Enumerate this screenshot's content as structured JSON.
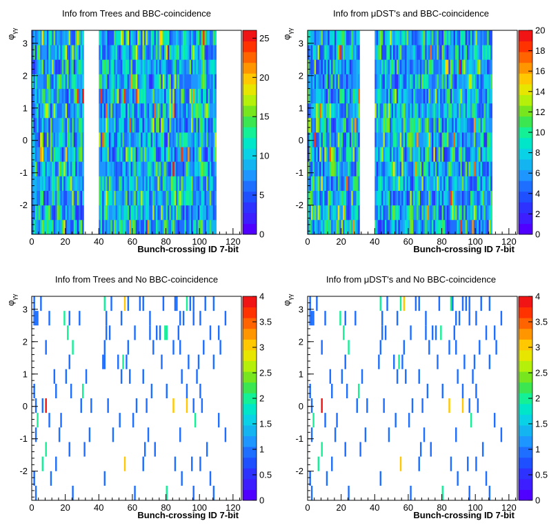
{
  "colorscale": [
    "#5000ff",
    "#3c1eff",
    "#2d32ff",
    "#1e50ff",
    "#1e6eff",
    "#1e96ff",
    "#14b4f0",
    "#0ad2e6",
    "#00e6c8",
    "#14f096",
    "#3ce650",
    "#78e61e",
    "#b4f00a",
    "#e6e600",
    "#ffc800",
    "#ff9600",
    "#ff6400",
    "#ff3200",
    "#f01414"
  ],
  "chart_data": [
    {
      "type": "heatmap",
      "title": "Info from Trees and BBC-coincidence",
      "xlabel": "Bunch-crossing ID 7-bit",
      "ylabel_base": "φ",
      "ylabel_sub": "γγ",
      "xlim": [
        0,
        125
      ],
      "ylim": [
        -2.9,
        3.4
      ],
      "xticks": [
        "0",
        "20",
        "40",
        "60",
        "80",
        "100",
        "120"
      ],
      "yticks": [
        "-2",
        "-1",
        "0",
        "1",
        "2",
        "3"
      ],
      "zlim": [
        0,
        26
      ],
      "zticks": [
        "0",
        "5",
        "10",
        "15",
        "20",
        "25"
      ],
      "zstep": 5,
      "mode": "dense",
      "filled_bins": [
        [
          0,
          31
        ],
        [
          40,
          110
        ]
      ],
      "seed": 11
    },
    {
      "type": "heatmap",
      "title": "Info from μDST's and BBC-coincidence",
      "xlabel": "Bunch-crossing ID 7-bit",
      "ylabel_base": "φ",
      "ylabel_sub": "γγ",
      "xlim": [
        0,
        125
      ],
      "ylim": [
        -2.9,
        3.4
      ],
      "xticks": [
        "0",
        "20",
        "40",
        "60",
        "80",
        "100",
        "120"
      ],
      "yticks": [
        "-2",
        "-1",
        "0",
        "1",
        "2",
        "3"
      ],
      "zlim": [
        0,
        20
      ],
      "zticks": [
        "0",
        "2",
        "4",
        "6",
        "8",
        "10",
        "12",
        "14",
        "16",
        "18",
        "20"
      ],
      "zstep": 2,
      "mode": "dense",
      "filled_bins": [
        [
          0,
          31
        ],
        [
          40,
          110
        ]
      ],
      "seed": 29
    },
    {
      "type": "heatmap",
      "title": "Info from Trees and No BBC-coincidence",
      "xlabel": "Bunch-crossing ID 7-bit",
      "ylabel_base": "φ",
      "ylabel_sub": "γγ",
      "xlim": [
        0,
        125
      ],
      "ylim": [
        -2.9,
        3.4
      ],
      "xticks": [
        "0",
        "20",
        "40",
        "60",
        "80",
        "100",
        "120"
      ],
      "yticks": [
        "-2",
        "-1",
        "0",
        "1",
        "2",
        "3"
      ],
      "zlim": [
        0,
        4
      ],
      "zticks": [
        "0",
        "0.5",
        "1",
        "1.5",
        "2",
        "2.5",
        "3",
        "3.5",
        "4"
      ],
      "zstep": 0.5,
      "mode": "sparse",
      "cells": [
        [
          5,
          13,
          1
        ],
        [
          1,
          13,
          1
        ],
        [
          1,
          12,
          1
        ],
        [
          3,
          12,
          1
        ],
        [
          43,
          13,
          2
        ],
        [
          47,
          13,
          1
        ],
        [
          55,
          13,
          3
        ],
        [
          57,
          13,
          1
        ],
        [
          64,
          13,
          1
        ],
        [
          66,
          13,
          1
        ],
        [
          78,
          13,
          1
        ],
        [
          85,
          13,
          1
        ],
        [
          86,
          13,
          1
        ],
        [
          92,
          13,
          2
        ],
        [
          94,
          13,
          1
        ],
        [
          96,
          13,
          1
        ],
        [
          103,
          13,
          1
        ],
        [
          108,
          13,
          1
        ],
        [
          2,
          12,
          1
        ],
        [
          10,
          12,
          1
        ],
        [
          19,
          12,
          2
        ],
        [
          22,
          12,
          1
        ],
        [
          28,
          12,
          1
        ],
        [
          44,
          12,
          1
        ],
        [
          53,
          12,
          1
        ],
        [
          70,
          12,
          1
        ],
        [
          88,
          12,
          1
        ],
        [
          90,
          12,
          1
        ],
        [
          96,
          12,
          1
        ],
        [
          100,
          12,
          1
        ],
        [
          115,
          12,
          1
        ],
        [
          21,
          11,
          2
        ],
        [
          44,
          11,
          1
        ],
        [
          46,
          11,
          1
        ],
        [
          61,
          11,
          1
        ],
        [
          70,
          11,
          1
        ],
        [
          74,
          11,
          1
        ],
        [
          76,
          11,
          1
        ],
        [
          79,
          11,
          2
        ],
        [
          80,
          11,
          2
        ],
        [
          87,
          11,
          1
        ],
        [
          106,
          11,
          1
        ],
        [
          111,
          11,
          1
        ],
        [
          8,
          10,
          1
        ],
        [
          24,
          10,
          2
        ],
        [
          43,
          10,
          1
        ],
        [
          57,
          10,
          1
        ],
        [
          72,
          10,
          1
        ],
        [
          84,
          10,
          1
        ],
        [
          88,
          10,
          1
        ],
        [
          102,
          10,
          1
        ],
        [
          112,
          10,
          1
        ],
        [
          22,
          9,
          1
        ],
        [
          42,
          9,
          1
        ],
        [
          43,
          9,
          1
        ],
        [
          51,
          9,
          1
        ],
        [
          54,
          9,
          2
        ],
        [
          56,
          9,
          1
        ],
        [
          77,
          9,
          1
        ],
        [
          93,
          9,
          1
        ],
        [
          99,
          9,
          1
        ],
        [
          108,
          9,
          1
        ],
        [
          13,
          8,
          1
        ],
        [
          20,
          8,
          1
        ],
        [
          32,
          8,
          1
        ],
        [
          53,
          8,
          1
        ],
        [
          58,
          8,
          1
        ],
        [
          66,
          8,
          1
        ],
        [
          89,
          8,
          1
        ],
        [
          98,
          8,
          1
        ],
        [
          1,
          7,
          1
        ],
        [
          14,
          7,
          1
        ],
        [
          23,
          7,
          1
        ],
        [
          30,
          7,
          2
        ],
        [
          71,
          7,
          1
        ],
        [
          80,
          7,
          1
        ],
        [
          92,
          7,
          1
        ],
        [
          100,
          7,
          1
        ],
        [
          2,
          6,
          1
        ],
        [
          8,
          6,
          4
        ],
        [
          6,
          6,
          1
        ],
        [
          29,
          6,
          1
        ],
        [
          35,
          6,
          1
        ],
        [
          45,
          6,
          1
        ],
        [
          62,
          6,
          1
        ],
        [
          68,
          6,
          1
        ],
        [
          84,
          6,
          3
        ],
        [
          92,
          6,
          3
        ],
        [
          96,
          6,
          1
        ],
        [
          101,
          6,
          1
        ],
        [
          3,
          5,
          2
        ],
        [
          10,
          5,
          1
        ],
        [
          17,
          5,
          1
        ],
        [
          52,
          5,
          1
        ],
        [
          60,
          5,
          1
        ],
        [
          97,
          5,
          2
        ],
        [
          111,
          5,
          1
        ],
        [
          2,
          4,
          1
        ],
        [
          16,
          4,
          1
        ],
        [
          34,
          4,
          1
        ],
        [
          48,
          4,
          1
        ],
        [
          69,
          4,
          1
        ],
        [
          88,
          4,
          1
        ],
        [
          115,
          4,
          1
        ],
        [
          8,
          3,
          2
        ],
        [
          22,
          3,
          1
        ],
        [
          31,
          3,
          1
        ],
        [
          67,
          3,
          1
        ],
        [
          73,
          3,
          1
        ],
        [
          104,
          3,
          1
        ],
        [
          6,
          2,
          2
        ],
        [
          14,
          2,
          1
        ],
        [
          55,
          2,
          3
        ],
        [
          66,
          2,
          1
        ],
        [
          85,
          2,
          1
        ],
        [
          95,
          2,
          1
        ],
        [
          100,
          2,
          1
        ],
        [
          1,
          1,
          1
        ],
        [
          11,
          1,
          1
        ],
        [
          43,
          1,
          1
        ],
        [
          89,
          1,
          1
        ],
        [
          106,
          1,
          1
        ],
        [
          2,
          0,
          1
        ],
        [
          24,
          0,
          1
        ],
        [
          61,
          0,
          1
        ],
        [
          80,
          0,
          2
        ],
        [
          96,
          0,
          1
        ],
        [
          108,
          0,
          1
        ]
      ]
    },
    {
      "type": "heatmap",
      "title": "Info from μDST's and No BBC-coincidence",
      "xlabel": "Bunch-crossing ID 7-bit",
      "ylabel_base": "φ",
      "ylabel_sub": "γγ",
      "xlim": [
        0,
        125
      ],
      "ylim": [
        -2.9,
        3.4
      ],
      "xticks": [
        "0",
        "20",
        "40",
        "60",
        "80",
        "100",
        "120"
      ],
      "yticks": [
        "-2",
        "-1",
        "0",
        "1",
        "2",
        "3"
      ],
      "zlim": [
        0,
        4
      ],
      "zticks": [
        "0",
        "0.5",
        "1",
        "1.5",
        "2",
        "2.5",
        "3",
        "3.5",
        "4"
      ],
      "zstep": 0.5,
      "mode": "sparse",
      "cells": [
        [
          5,
          13,
          1
        ],
        [
          1,
          13,
          1
        ],
        [
          1,
          12,
          1
        ],
        [
          3,
          12,
          1
        ],
        [
          43,
          13,
          2
        ],
        [
          47,
          13,
          1
        ],
        [
          55,
          13,
          2
        ],
        [
          57,
          13,
          3
        ],
        [
          64,
          13,
          1
        ],
        [
          66,
          13,
          1
        ],
        [
          78,
          13,
          1
        ],
        [
          85,
          13,
          2
        ],
        [
          86,
          13,
          1
        ],
        [
          92,
          13,
          1
        ],
        [
          94,
          13,
          1
        ],
        [
          96,
          13,
          1
        ],
        [
          103,
          13,
          1
        ],
        [
          108,
          13,
          1
        ],
        [
          2,
          12,
          1
        ],
        [
          10,
          12,
          1
        ],
        [
          19,
          12,
          2
        ],
        [
          22,
          12,
          1
        ],
        [
          28,
          12,
          1
        ],
        [
          44,
          12,
          1
        ],
        [
          53,
          12,
          1
        ],
        [
          70,
          12,
          1
        ],
        [
          88,
          12,
          1
        ],
        [
          90,
          12,
          1
        ],
        [
          96,
          12,
          1
        ],
        [
          100,
          12,
          1
        ],
        [
          115,
          12,
          1
        ],
        [
          21,
          11,
          2
        ],
        [
          44,
          11,
          1
        ],
        [
          46,
          11,
          1
        ],
        [
          61,
          11,
          1
        ],
        [
          70,
          11,
          1
        ],
        [
          74,
          11,
          1
        ],
        [
          76,
          11,
          1
        ],
        [
          79,
          11,
          2
        ],
        [
          87,
          11,
          1
        ],
        [
          106,
          11,
          1
        ],
        [
          111,
          11,
          1
        ],
        [
          8,
          10,
          1
        ],
        [
          24,
          10,
          2
        ],
        [
          43,
          10,
          1
        ],
        [
          57,
          10,
          1
        ],
        [
          72,
          10,
          1
        ],
        [
          84,
          10,
          1
        ],
        [
          88,
          10,
          1
        ],
        [
          102,
          10,
          1
        ],
        [
          112,
          10,
          1
        ],
        [
          22,
          9,
          1
        ],
        [
          42,
          9,
          1
        ],
        [
          51,
          9,
          1
        ],
        [
          54,
          9,
          2
        ],
        [
          56,
          9,
          1
        ],
        [
          77,
          9,
          1
        ],
        [
          93,
          9,
          1
        ],
        [
          99,
          9,
          1
        ],
        [
          108,
          9,
          1
        ],
        [
          13,
          8,
          1
        ],
        [
          20,
          8,
          1
        ],
        [
          32,
          8,
          1
        ],
        [
          53,
          8,
          1
        ],
        [
          58,
          8,
          1
        ],
        [
          66,
          8,
          1
        ],
        [
          89,
          8,
          1
        ],
        [
          98,
          8,
          1
        ],
        [
          1,
          7,
          1
        ],
        [
          14,
          7,
          1
        ],
        [
          23,
          7,
          1
        ],
        [
          30,
          7,
          2
        ],
        [
          71,
          7,
          1
        ],
        [
          80,
          7,
          1
        ],
        [
          92,
          7,
          1
        ],
        [
          100,
          7,
          1
        ],
        [
          2,
          6,
          1
        ],
        [
          8,
          6,
          4
        ],
        [
          29,
          6,
          1
        ],
        [
          35,
          6,
          1
        ],
        [
          45,
          6,
          1
        ],
        [
          62,
          6,
          1
        ],
        [
          68,
          6,
          1
        ],
        [
          84,
          6,
          3
        ],
        [
          92,
          6,
          3
        ],
        [
          96,
          6,
          1
        ],
        [
          101,
          6,
          1
        ],
        [
          3,
          5,
          2
        ],
        [
          10,
          5,
          1
        ],
        [
          17,
          5,
          1
        ],
        [
          52,
          5,
          1
        ],
        [
          60,
          5,
          1
        ],
        [
          97,
          5,
          2
        ],
        [
          111,
          5,
          1
        ],
        [
          2,
          4,
          1
        ],
        [
          16,
          4,
          1
        ],
        [
          34,
          4,
          1
        ],
        [
          48,
          4,
          1
        ],
        [
          69,
          4,
          1
        ],
        [
          88,
          4,
          1
        ],
        [
          115,
          4,
          1
        ],
        [
          8,
          3,
          2
        ],
        [
          22,
          3,
          1
        ],
        [
          31,
          3,
          1
        ],
        [
          67,
          3,
          1
        ],
        [
          73,
          3,
          1
        ],
        [
          104,
          3,
          1
        ],
        [
          6,
          2,
          2
        ],
        [
          14,
          2,
          1
        ],
        [
          55,
          2,
          3
        ],
        [
          66,
          2,
          1
        ],
        [
          85,
          2,
          1
        ],
        [
          95,
          2,
          1
        ],
        [
          100,
          2,
          1
        ],
        [
          1,
          1,
          1
        ],
        [
          11,
          1,
          1
        ],
        [
          43,
          1,
          1
        ],
        [
          89,
          1,
          1
        ],
        [
          106,
          1,
          1
        ],
        [
          2,
          0,
          1
        ],
        [
          24,
          0,
          1
        ],
        [
          61,
          0,
          1
        ],
        [
          80,
          0,
          2
        ],
        [
          96,
          0,
          1
        ],
        [
          108,
          0,
          1
        ]
      ]
    }
  ]
}
